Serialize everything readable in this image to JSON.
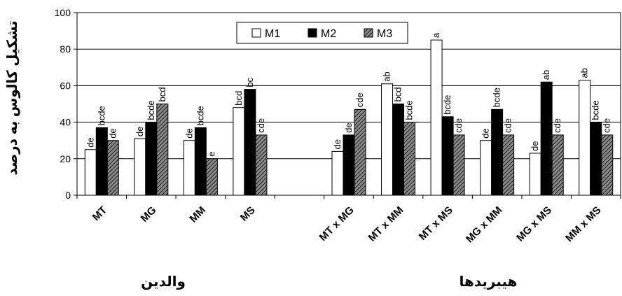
{
  "chart_data": {
    "type": "bar",
    "ylabel": "تشکیل کالوس به درصد",
    "ylim": [
      0,
      100
    ],
    "yticks": [
      "0",
      "20",
      "40",
      "60",
      "80",
      "100"
    ],
    "grid": true,
    "legend_position": "top-center",
    "categories": [
      "MT",
      "MG",
      "MM",
      "MS",
      "",
      "MT x MG",
      "MT x MM",
      "MT x MS",
      "MG x MM",
      "MG x MS",
      "MM x MS"
    ],
    "series": [
      {
        "name": "M1",
        "color": "#ffffff",
        "pattern": "none",
        "values": [
          25,
          31,
          30,
          48,
          null,
          24,
          61,
          85,
          30,
          23,
          63
        ],
        "labels": [
          "de",
          "de",
          "de",
          "bcd",
          "",
          "de",
          "ab",
          "a",
          "de",
          "de",
          "ab"
        ]
      },
      {
        "name": "M2",
        "color": "#000000",
        "pattern": "solid",
        "values": [
          37,
          40,
          37,
          58,
          null,
          33,
          50,
          43,
          47,
          62,
          40
        ],
        "labels": [
          "bcde",
          "bcde",
          "bcde",
          "bc",
          "",
          "de",
          "bcd",
          "bcde",
          "bcde",
          "ab",
          "bcde"
        ]
      },
      {
        "name": "M3",
        "color": "#555555",
        "pattern": "hatched",
        "values": [
          30,
          50,
          20,
          33,
          null,
          47,
          40,
          33,
          33,
          33,
          33
        ],
        "labels": [
          "de",
          "bcd",
          "e",
          "cde",
          "",
          "cde",
          "bcde",
          "cde",
          "cde",
          "cde",
          "cde"
        ]
      }
    ],
    "group_titles": {
      "parents": "والدین",
      "hybrids": "هیبریدها"
    }
  }
}
